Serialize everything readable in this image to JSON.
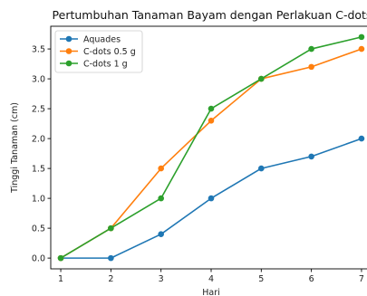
{
  "chart_data": {
    "type": "line",
    "title": "Pertumbuhan Tanaman Bayam dengan Perlakuan C-dots",
    "xlabel": "Hari",
    "ylabel": "Tinggi Tanaman (cm)",
    "x": [
      1,
      2,
      3,
      4,
      5,
      6,
      7
    ],
    "xlim": [
      0.8,
      7.2
    ],
    "ylim": [
      -0.18,
      3.88
    ],
    "x_ticks": [
      "1",
      "2",
      "3",
      "4",
      "5",
      "6",
      "7"
    ],
    "y_ticks": [
      "0.0",
      "0.5",
      "1.0",
      "1.5",
      "2.0",
      "2.5",
      "3.0",
      "3.5"
    ],
    "grid": false,
    "legend_position": "top-left",
    "series": [
      {
        "name": "Aquades",
        "color": "#1f77b4",
        "values": [
          0,
          0,
          0.4,
          1.0,
          1.5,
          1.7,
          2.0
        ]
      },
      {
        "name": "C-dots 0.5 g",
        "color": "#ff7f0e",
        "values": [
          0,
          0.5,
          1.5,
          2.3,
          3.0,
          3.2,
          3.5
        ]
      },
      {
        "name": "C-dots 1 g",
        "color": "#2ca02c",
        "values": [
          0,
          0.5,
          1.0,
          2.5,
          3.0,
          3.5,
          3.7
        ]
      }
    ]
  }
}
